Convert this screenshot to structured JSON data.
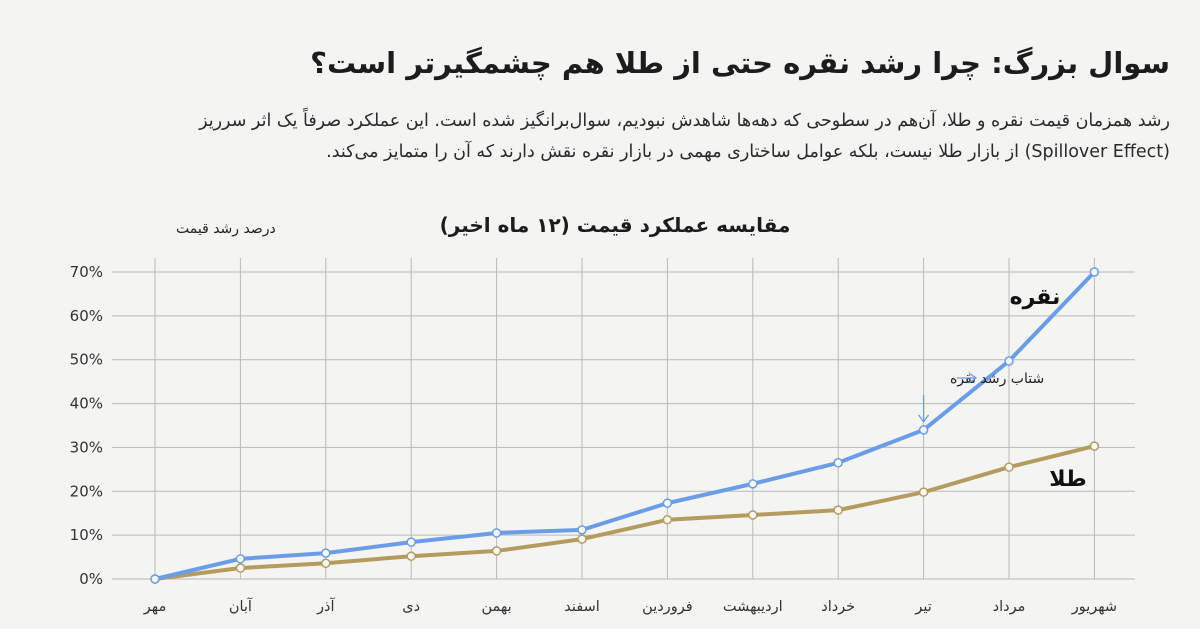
{
  "header": {
    "title": "سوال بزرگ: چرا رشد نقره حتی از طلا هم چشمگیرتر است؟",
    "paragraph_lines": [
      "رشد همزمان قیمت نقره و طلا، آن‌هم در سطوحی که دهه‌ها شاهدش نبودیم، سوال‌برانگیز شده است. این عملکرد صرفاً یک اثر سرریز",
      "(Spillover Effect) از بازار طلا نیست، بلکه عوامل ساختاری مهمی در بازار نقره نقش دارند که آن را متمایز می‌کند."
    ]
  },
  "chart_data": {
    "type": "line",
    "title": "مقایسه عملکرد قیمت (۱۲ ماه اخیر)",
    "ylabel": "درصد رشد قیمت",
    "xlabel": "",
    "categories": [
      "مهر",
      "آبان",
      "آذر",
      "دی",
      "بهمن",
      "اسفند",
      "فروردین",
      "اردیبهشت",
      "خرداد",
      "تیر",
      "مرداد",
      "شهریور"
    ],
    "ylim": [
      0,
      70
    ],
    "yticks": [
      "0%",
      "10%",
      "20%",
      "30%",
      "40%",
      "50%",
      "60%",
      "70%"
    ],
    "grid": true,
    "series": [
      {
        "name": "نقره",
        "color": "#6b9de6",
        "values": [
          0,
          4.6,
          5.9,
          8.4,
          10.5,
          11.2,
          17.3,
          21.7,
          26.5,
          34.0,
          49.7,
          70.0
        ]
      },
      {
        "name": "طلا",
        "color": "#b49c5f",
        "values": [
          0,
          2.5,
          3.6,
          5.2,
          6.4,
          9.1,
          13.5,
          14.6,
          15.7,
          19.8,
          25.5,
          30.3
        ]
      }
    ],
    "annotation": {
      "text": "شتاب رشد نقره",
      "category": "تیر",
      "series": "نقره"
    }
  }
}
